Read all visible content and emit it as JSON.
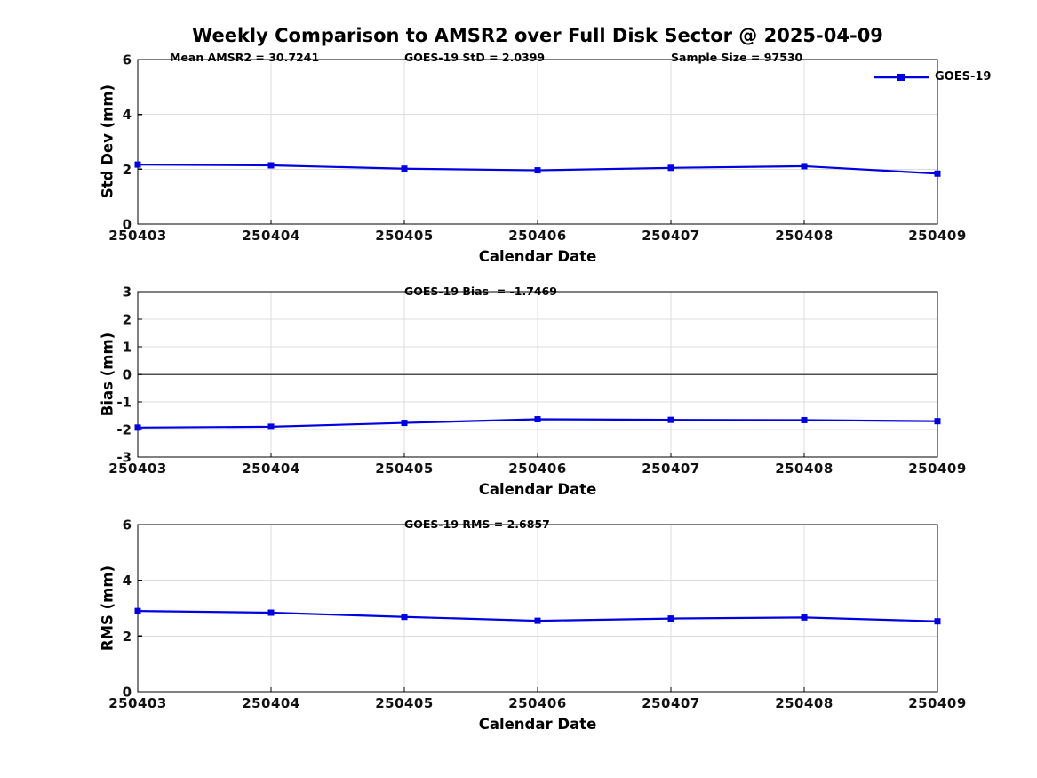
{
  "figure": {
    "title": "Weekly Comparison to AMSR2 over Full Disk Sector @ 2025-04-09"
  },
  "legend": {
    "label": "GOES-19"
  },
  "colors": {
    "line": "#0000e0",
    "marker": "#0000e0",
    "grid": "#dcdcdc",
    "zero_line": "#4d4d4d",
    "axis": "#000000",
    "tick_text": "#111111"
  },
  "chart_data": [
    {
      "type": "line",
      "panel": "std-dev",
      "title": "",
      "ylabel": "Std Dev (mm)",
      "xlabel": "Calendar Date",
      "categories": [
        "250403",
        "250404",
        "250405",
        "250406",
        "250407",
        "250408",
        "250409"
      ],
      "series": [
        {
          "name": "GOES-19",
          "values": [
            2.17,
            2.14,
            2.02,
            1.96,
            2.05,
            2.11,
            1.84
          ]
        }
      ],
      "ylim": [
        0,
        6
      ],
      "yticks": [
        0,
        2,
        4,
        6
      ],
      "grid": true,
      "legend_position": "northeast-outside",
      "annotations": [
        {
          "text": "Mean AMSR2 = 30.7241"
        },
        {
          "text": "GOES-19 StD = 2.0399"
        },
        {
          "text": "Sample Size = 97530"
        }
      ]
    },
    {
      "type": "line",
      "panel": "bias",
      "title": "",
      "ylabel": "Bias (mm)",
      "xlabel": "Calendar Date",
      "categories": [
        "250403",
        "250404",
        "250405",
        "250406",
        "250407",
        "250408",
        "250409"
      ],
      "series": [
        {
          "name": "GOES-19",
          "values": [
            -1.93,
            -1.9,
            -1.76,
            -1.63,
            -1.65,
            -1.66,
            -1.7
          ]
        }
      ],
      "ylim": [
        -3,
        3
      ],
      "yticks": [
        -3,
        -2,
        -1,
        0,
        1,
        2,
        3
      ],
      "grid": true,
      "zero_line": true,
      "annotations": [
        {
          "text": "GOES-19 Bias  = -1.7469"
        }
      ]
    },
    {
      "type": "line",
      "panel": "rms",
      "title": "",
      "ylabel": "RMS (mm)",
      "xlabel": "Calendar Date",
      "categories": [
        "250403",
        "250404",
        "250405",
        "250406",
        "250407",
        "250408",
        "250409"
      ],
      "series": [
        {
          "name": "GOES-19",
          "values": [
            2.9,
            2.84,
            2.69,
            2.55,
            2.63,
            2.67,
            2.53
          ]
        }
      ],
      "ylim": [
        0,
        6
      ],
      "yticks": [
        0,
        2,
        4,
        6
      ],
      "grid": true,
      "annotations": [
        {
          "text": "GOES-19 RMS = 2.6857"
        }
      ]
    }
  ]
}
